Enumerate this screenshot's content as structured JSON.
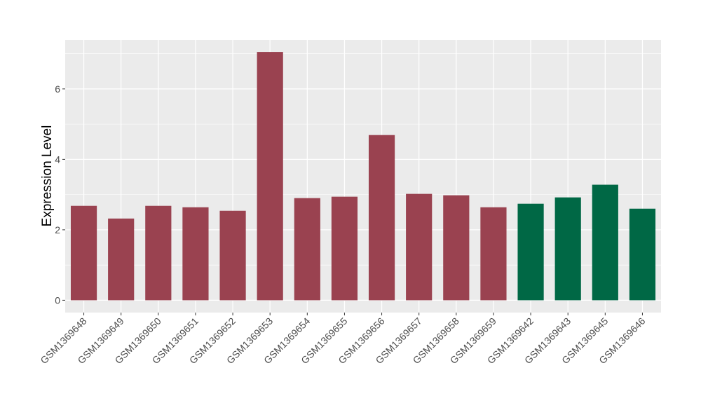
{
  "chart_data": {
    "type": "bar",
    "title": "",
    "xlabel": "",
    "ylabel": "Expression Level",
    "ylim": [
      -0.35,
      7.39
    ],
    "yticks": [
      0,
      2,
      4,
      6
    ],
    "grid": true,
    "categories": [
      "GSM1369648",
      "GSM1369649",
      "GSM1369650",
      "GSM1369651",
      "GSM1369652",
      "GSM1369653",
      "GSM1369654",
      "GSM1369655",
      "GSM1369656",
      "GSM1369657",
      "GSM1369658",
      "GSM1369659",
      "GSM1369642",
      "GSM1369643",
      "GSM1369645",
      "GSM1369646"
    ],
    "values": [
      2.68,
      2.32,
      2.68,
      2.64,
      2.54,
      7.05,
      2.9,
      2.94,
      4.69,
      3.02,
      2.98,
      2.64,
      2.74,
      2.92,
      3.28,
      2.6
    ],
    "groups": [
      "a",
      "a",
      "a",
      "a",
      "a",
      "a",
      "a",
      "a",
      "a",
      "a",
      "a",
      "a",
      "b",
      "b",
      "b",
      "b"
    ],
    "colors": {
      "a": "#9A4250",
      "b": "#006845"
    }
  }
}
